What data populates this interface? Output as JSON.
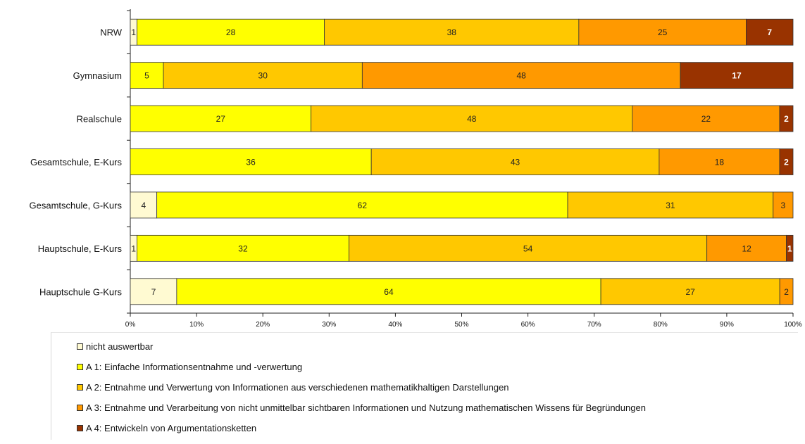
{
  "chart_data": {
    "type": "bar",
    "orientation": "horizontal",
    "stacked": "percent",
    "categories": [
      "NRW",
      "Gymnasium",
      "Realschule",
      "Gesamtschule, E-Kurs",
      "Gesamtschule, G-Kurs",
      "Hauptschule, E-Kurs",
      "Hauptschule G-Kurs"
    ],
    "series": [
      {
        "name": "nicht auswertbar",
        "color": "#FFFAD2",
        "values": [
          1,
          0,
          0,
          0,
          4,
          1,
          7
        ],
        "labels": [
          "1",
          "",
          "",
          "",
          "4",
          "1",
          "7"
        ]
      },
      {
        "name": "A 1: Einfache Informationsentnahme und -verwertung",
        "color": "#FFFF00",
        "values": [
          28,
          5,
          27,
          36,
          62,
          32,
          64
        ],
        "labels": [
          "28",
          "5",
          "27",
          "36",
          "62",
          "32",
          "64"
        ]
      },
      {
        "name": "A 2: Entnahme und Verwertung von Informationen aus verschiedenen mathematikhaltigen Darstellungen",
        "color": "#FFC800",
        "values": [
          38,
          30,
          48,
          43,
          31,
          54,
          27
        ],
        "labels": [
          "38",
          "30",
          "48",
          "43",
          "31",
          "54",
          "27"
        ]
      },
      {
        "name": "A 3: Entnahme und Verarbeitung von nicht unmittelbar sichtbaren Informationen und Nutzung mathematischen Wissens für Begründungen",
        "color": "#FF9900",
        "values": [
          25,
          48,
          22,
          18,
          3,
          12,
          2
        ],
        "labels": [
          "25",
          "48",
          "22",
          "18",
          "3",
          "12",
          "2"
        ]
      },
      {
        "name": "A 4: Entwickeln von Argumentationsketten",
        "color": "#993300",
        "values": [
          7,
          17,
          2,
          2,
          0,
          1,
          0
        ],
        "labels": [
          "7",
          "17",
          "2",
          "2",
          "",
          "1",
          ""
        ]
      }
    ],
    "xticks": [
      "0%",
      "10%",
      "20%",
      "30%",
      "40%",
      "50%",
      "60%",
      "70%",
      "80%",
      "90%",
      "100%"
    ],
    "xlim": [
      0,
      100
    ],
    "legend": "bottom"
  }
}
